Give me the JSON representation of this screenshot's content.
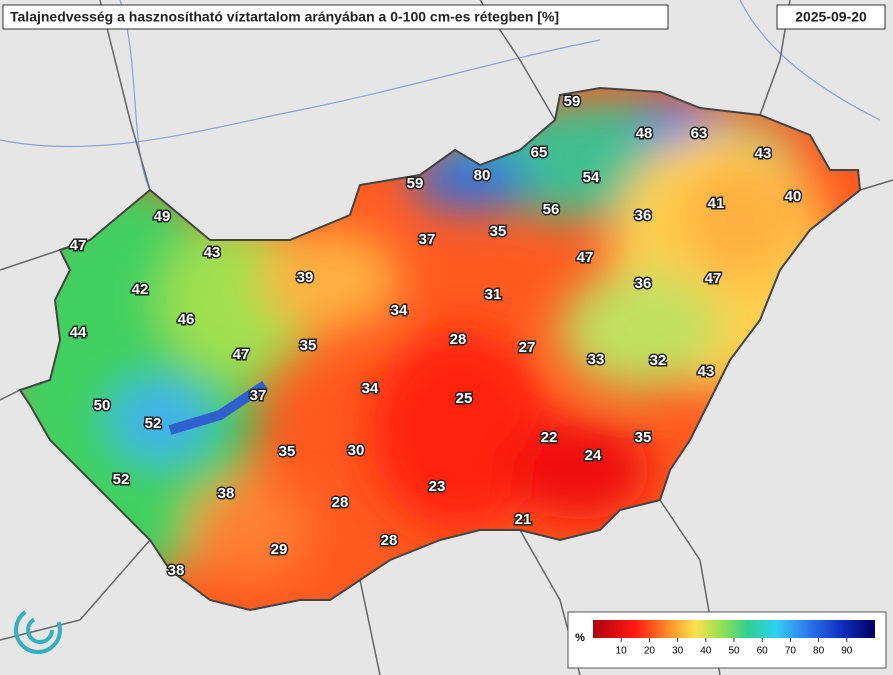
{
  "title": "Talajnedvesség a hasznosítható víztartalom arányában a 0-100 cm-es rétegben [%]",
  "date": "2025-09-20",
  "stations": [
    59,
    48,
    63,
    65,
    43,
    80,
    59,
    54,
    40,
    41,
    49,
    56,
    36,
    47,
    43,
    37,
    35,
    47,
    39,
    47,
    36,
    42,
    31,
    34,
    46,
    44,
    28,
    35,
    27,
    47,
    33,
    32,
    43,
    34,
    37,
    25,
    50,
    52,
    22,
    35,
    35,
    30,
    24,
    52,
    38,
    23,
    28,
    21,
    29,
    28,
    38
  ],
  "colorbar": {
    "unit": "%",
    "range": [
      0,
      100
    ],
    "ticks": [
      10,
      20,
      30,
      40,
      50,
      60,
      70,
      80,
      90
    ]
  }
}
